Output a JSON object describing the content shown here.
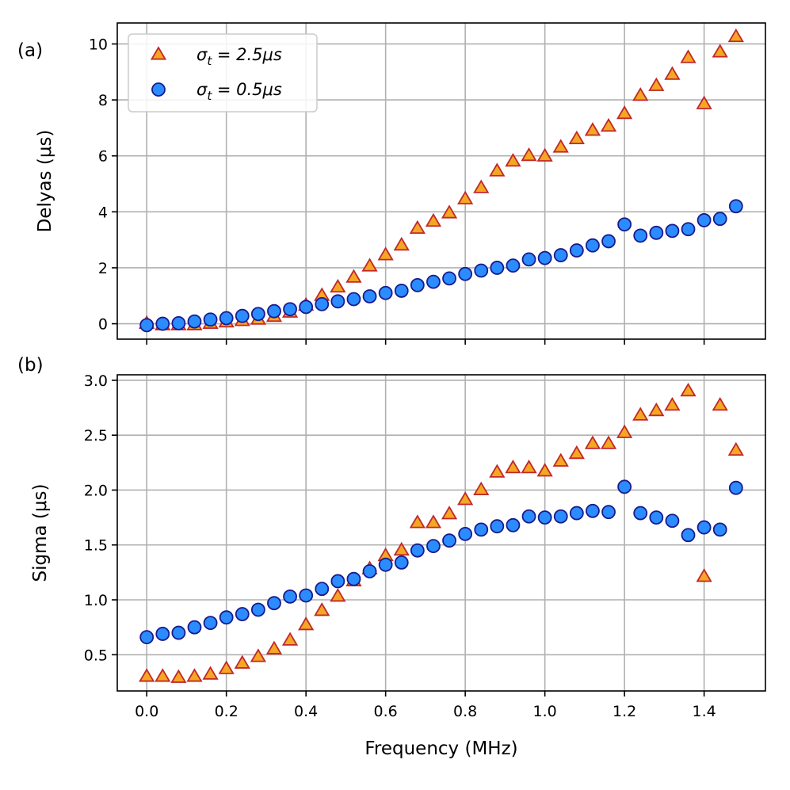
{
  "chart_data": [
    {
      "panel_label": "(a)",
      "type": "scatter",
      "xlabel": "",
      "ylabel": "Delyas (μs)",
      "xlim": [
        -0.074,
        1.554
      ],
      "ylim": [
        -0.55,
        10.75
      ],
      "xticks": [
        0.0,
        0.2,
        0.4,
        0.6,
        0.8,
        1.0,
        1.2,
        1.4
      ],
      "xticklabels_visible": false,
      "yticks": [
        0,
        2,
        4,
        6,
        8,
        10
      ],
      "yticklabels": [
        "0",
        "2",
        "4",
        "6",
        "8",
        "10"
      ],
      "grid": true,
      "legend_position": "upper-left",
      "x": [
        0.0,
        0.04,
        0.08,
        0.12,
        0.16,
        0.2,
        0.24,
        0.28,
        0.32,
        0.36,
        0.4,
        0.44,
        0.48,
        0.52,
        0.56,
        0.6,
        0.64,
        0.68,
        0.72,
        0.76,
        0.8,
        0.84,
        0.88,
        0.92,
        0.96,
        1.0,
        1.04,
        1.08,
        1.12,
        1.16,
        1.2,
        1.24,
        1.28,
        1.32,
        1.36,
        1.4,
        1.44,
        1.48
      ],
      "series": [
        {
          "name": "σ_t = 2.5μs",
          "marker": "triangle",
          "face_color": "#f5a623",
          "edge_color": "#c0282a",
          "values": [
            0.0,
            -0.05,
            -0.05,
            -0.05,
            0.0,
            0.05,
            0.1,
            0.15,
            0.25,
            0.4,
            0.65,
            1.0,
            1.3,
            1.65,
            2.05,
            2.45,
            2.8,
            3.4,
            3.65,
            3.95,
            4.45,
            4.85,
            5.45,
            5.8,
            6.0,
            5.98,
            6.3,
            6.6,
            6.9,
            7.05,
            7.5,
            8.15,
            8.5,
            8.9,
            9.5,
            7.85,
            9.7,
            10.25
          ]
        },
        {
          "name": "σ_t = 0.5μs",
          "marker": "circle",
          "face_color": "#2b8cff",
          "edge_color": "#1a1a8c",
          "values": [
            -0.05,
            0.0,
            0.02,
            0.08,
            0.15,
            0.2,
            0.28,
            0.35,
            0.45,
            0.52,
            0.6,
            0.7,
            0.8,
            0.88,
            0.98,
            1.1,
            1.18,
            1.38,
            1.5,
            1.62,
            1.78,
            1.9,
            2.0,
            2.08,
            2.3,
            2.35,
            2.45,
            2.62,
            2.8,
            2.95,
            3.55,
            3.15,
            3.25,
            3.32,
            3.38,
            3.7,
            3.75,
            4.2
          ]
        }
      ]
    },
    {
      "panel_label": "(b)",
      "type": "scatter",
      "xlabel": "Frequency (MHz)",
      "ylabel": "Sigma (μs)",
      "xlim": [
        -0.074,
        1.554
      ],
      "ylim": [
        0.17,
        3.05
      ],
      "xticks": [
        0.0,
        0.2,
        0.4,
        0.6,
        0.8,
        1.0,
        1.2,
        1.4
      ],
      "xticklabels": [
        "0.0",
        "0.2",
        "0.4",
        "0.6",
        "0.8",
        "1.0",
        "1.2",
        "1.4"
      ],
      "yticks": [
        0.5,
        1.0,
        1.5,
        2.0,
        2.5,
        3.0
      ],
      "yticklabels": [
        "0.5",
        "1.0",
        "1.5",
        "2.0",
        "2.5",
        "3.0"
      ],
      "grid": true,
      "x": [
        0.0,
        0.04,
        0.08,
        0.12,
        0.16,
        0.2,
        0.24,
        0.28,
        0.32,
        0.36,
        0.4,
        0.44,
        0.48,
        0.52,
        0.56,
        0.6,
        0.64,
        0.68,
        0.72,
        0.76,
        0.8,
        0.84,
        0.88,
        0.92,
        0.96,
        1.0,
        1.04,
        1.08,
        1.12,
        1.16,
        1.2,
        1.24,
        1.28,
        1.32,
        1.36,
        1.4,
        1.44,
        1.48
      ],
      "series": [
        {
          "name": "σ_t = 2.5μs",
          "marker": "triangle",
          "face_color": "#f5a623",
          "edge_color": "#c0282a",
          "values": [
            0.3,
            0.3,
            0.29,
            0.3,
            0.32,
            0.37,
            0.42,
            0.48,
            0.55,
            0.63,
            0.77,
            0.9,
            1.03,
            1.17,
            1.28,
            1.4,
            1.45,
            1.7,
            1.7,
            1.78,
            1.91,
            2.0,
            2.16,
            2.2,
            2.2,
            2.17,
            2.26,
            2.33,
            2.42,
            2.42,
            2.52,
            2.68,
            2.72,
            2.77,
            2.9,
            1.21,
            2.77,
            2.36
          ]
        },
        {
          "name": "σ_t = 0.5μs",
          "marker": "circle",
          "face_color": "#2b8cff",
          "edge_color": "#1a1a8c",
          "values": [
            0.66,
            0.69,
            0.7,
            0.75,
            0.79,
            0.84,
            0.87,
            0.91,
            0.97,
            1.03,
            1.04,
            1.1,
            1.17,
            1.19,
            1.26,
            1.32,
            1.34,
            1.45,
            1.49,
            1.54,
            1.6,
            1.64,
            1.67,
            1.68,
            1.76,
            1.75,
            1.76,
            1.79,
            1.81,
            1.8,
            2.03,
            1.79,
            1.75,
            1.72,
            1.59,
            1.66,
            1.64,
            2.02
          ]
        }
      ]
    }
  ]
}
